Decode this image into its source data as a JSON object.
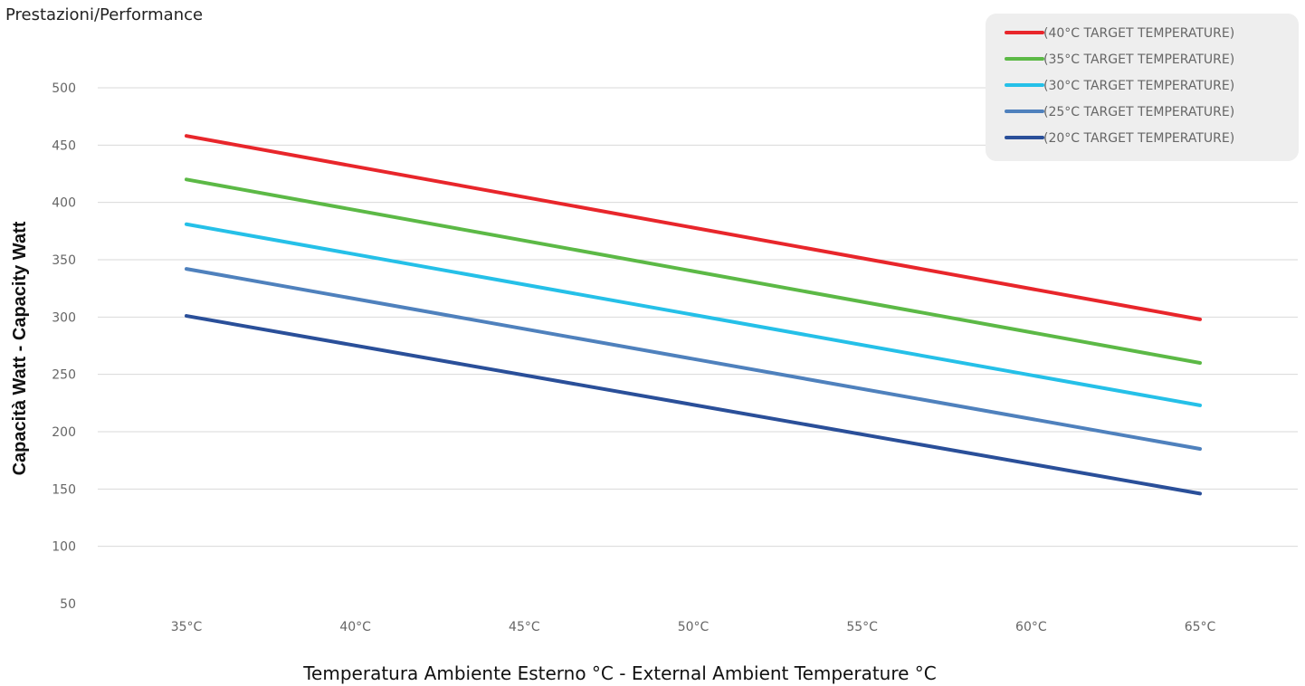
{
  "chart_data": {
    "type": "line",
    "title": "Prestazioni/Performance",
    "xlabel": "Temperatura Ambiente Esterno °C - External Ambient Temperature °C",
    "ylabel": "Capacità Watt - Capacity Watt",
    "categories": [
      "35°C",
      "40°C",
      "45°C",
      "50°C",
      "55°C",
      "60°C",
      "65°C"
    ],
    "x": [
      35,
      40,
      45,
      50,
      55,
      60,
      65
    ],
    "yticks": [
      50,
      100,
      150,
      200,
      250,
      300,
      350,
      400,
      450,
      500
    ],
    "ylim": [
      50,
      500
    ],
    "grid": true,
    "legend_position": "top-right",
    "series": [
      {
        "name": "(40°C TARGET TEMPERATURE)",
        "color": "#e8262b",
        "x": [
          35,
          65
        ],
        "values": [
          458,
          298
        ]
      },
      {
        "name": "(35°C TARGET TEMPERATURE)",
        "color": "#5cb946",
        "x": [
          35,
          65
        ],
        "values": [
          420,
          260
        ]
      },
      {
        "name": "(30°C TARGET TEMPERATURE)",
        "color": "#25c0e8",
        "x": [
          35,
          65
        ],
        "values": [
          381,
          223
        ]
      },
      {
        "name": "(25°C TARGET TEMPERATURE)",
        "color": "#4f81bd",
        "x": [
          35,
          65
        ],
        "values": [
          342,
          185
        ]
      },
      {
        "name": "(20°C TARGET TEMPERATURE)",
        "color": "#2a4f99",
        "x": [
          35,
          65
        ],
        "values": [
          301,
          146
        ]
      }
    ]
  }
}
